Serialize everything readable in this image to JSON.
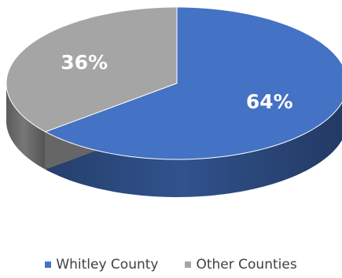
{
  "chart_data": {
    "type": "pie",
    "style": "3d",
    "categories": [
      "Whitley County",
      "Other Counties"
    ],
    "values": [
      64,
      36
    ],
    "data_labels": [
      "64%",
      "36%"
    ],
    "colors": [
      "#4472C4",
      "#A5A5A5"
    ],
    "legend_position": "bottom"
  }
}
